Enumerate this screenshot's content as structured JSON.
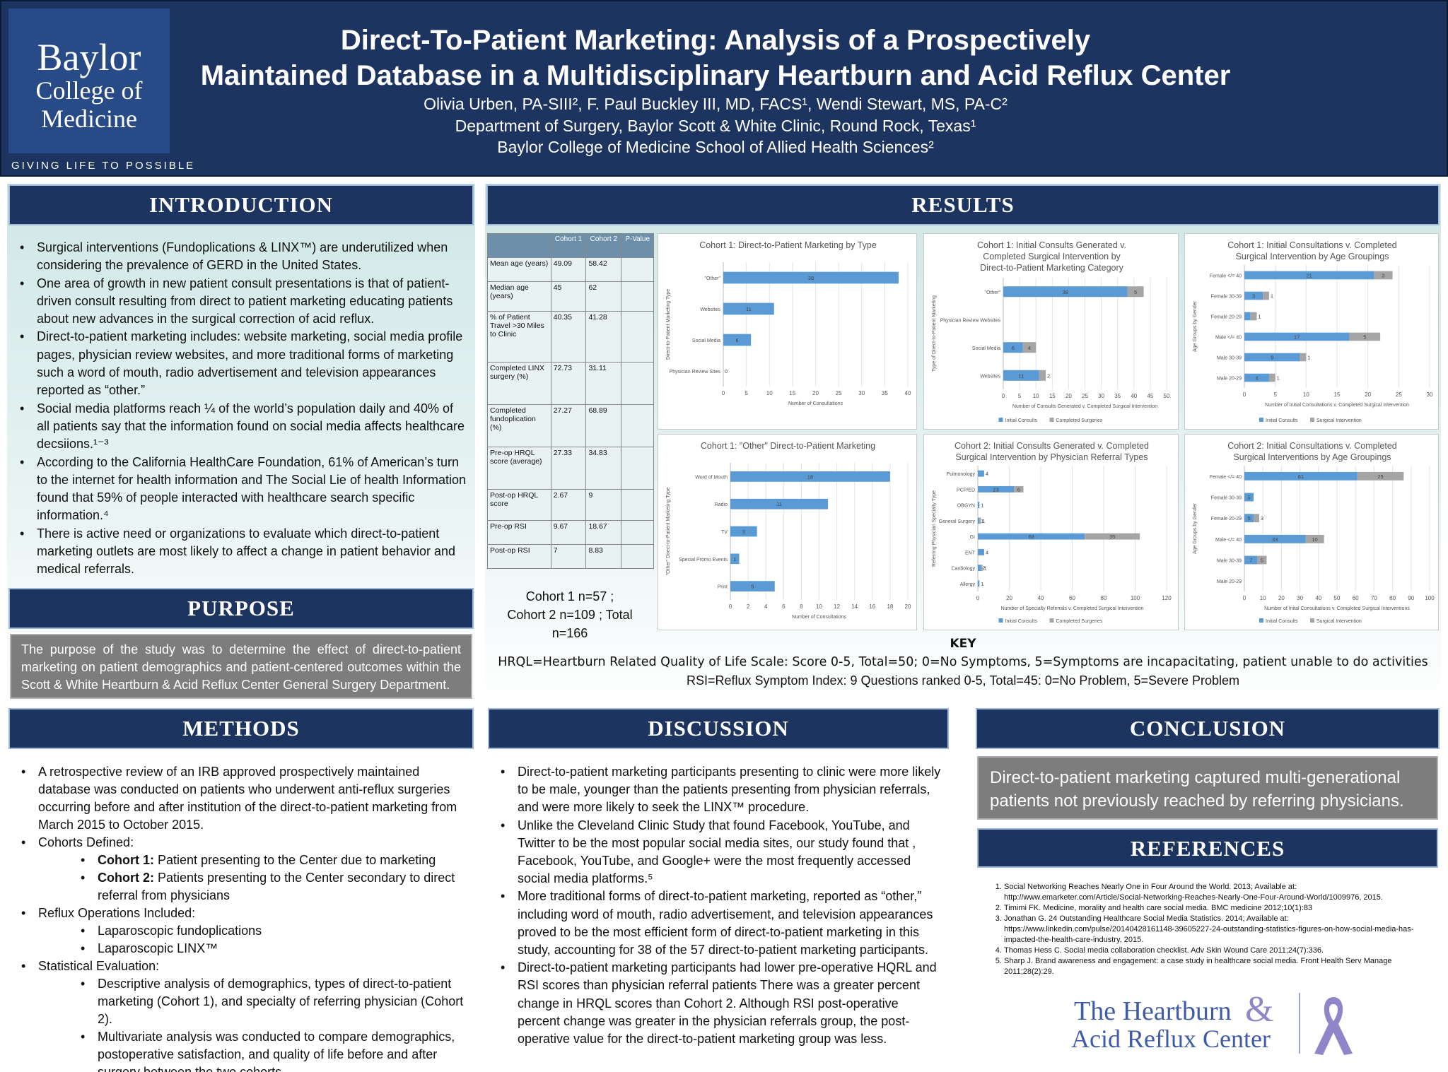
{
  "header": {
    "logo": {
      "line1": "Baylor",
      "line2": "College of",
      "line3": "Medicine"
    },
    "tagline": "GIVING LIFE TO POSSIBLE",
    "title_line1": "Direct-To-Patient Marketing: Analysis of a Prospectively",
    "title_line2": "Maintained Database in a Multidisciplinary Heartburn and Acid Reflux Center",
    "authors": "Olivia Urben, PA-SIII², F. Paul Buckley III, MD, FACS¹, Wendi Stewart, MS, PA-C²",
    "affiliation1": "Department of Surgery, Baylor Scott & White Clinic, Round Rock, Texas¹",
    "affiliation2": "Baylor College of Medicine School of Allied Health Sciences²"
  },
  "introduction": {
    "heading": "INTRODUCTION",
    "bullets": [
      "Surgical interventions (Fundoplications & LINX™) are underutilized when considering the prevalence of GERD in the United States.",
      "One area of growth in new patient consult presentations is that of patient-driven consult resulting from direct to patient marketing educating patients about new advances in the surgical correction of acid reflux.",
      "Direct-to-patient marketing includes: website marketing, social media profile pages, physician review websites, and more traditional forms of marketing such a word of mouth, radio advertisement and television appearances reported as “other.”",
      "Social media platforms reach ¼ of the world’s population daily and 40% of all patients say that the information found on social media affects healthcare decsiions.¹⁻³",
      "According to the California HealthCare Foundation, 61% of American’s turn to the internet for health information and The Social Lie of health Information found that 59% of people interacted with healthcare search specific information.⁴",
      "There is active need or organizations to evaluate which direct-to-patient marketing outlets are most likely to affect a change in patient behavior and medical referrals."
    ]
  },
  "purpose": {
    "heading": "PURPOSE",
    "text": "The purpose of the study was to determine the effect of direct-to-patient marketing on patient demographics and patient-centered outcomes within the Scott & White Heartburn & Acid Reflux Center General Surgery Department."
  },
  "methods": {
    "heading": "METHODS",
    "b1": "A retrospective review of an IRB approved prospectively maintained database was conducted on patients who underwent anti-reflux surgeries occurring before and after institution of the direct-to-patient marketing from March 2015 to October 2015.",
    "b2": "Cohorts Defined:",
    "c1_label": "Cohort 1:",
    "c1_text": " Patient presenting to the Center due to marketing",
    "c2_label": "Cohort 2:",
    "c2_text": " Patients presenting to the Center secondary to direct referral from physicians",
    "b3": "Reflux Operations Included:",
    "op1": "Laparoscopic fundoplications",
    "op2": "Laparoscopic LINX™",
    "b4": "Statistical Evaluation:",
    "s1": "Descriptive analysis of demographics, types of direct-to-patient marketing (Cohort 1), and specialty of referring physician (Cohort 2).",
    "s2": "Multivariate analysis was conducted to compare demographics, postoperative satisfaction, and quality of life before and after surgery between the two cohorts."
  },
  "results": {
    "heading": "RESULTS",
    "table": {
      "headers": [
        "",
        "Cohort 1",
        "Cohort 2",
        "P-Value"
      ],
      "rows": [
        [
          "Mean age (years)",
          "49.09",
          "58.42",
          ""
        ],
        [
          "Median age (years)",
          "45",
          "62",
          ""
        ],
        [
          "% of Patient Travel >30 Miles to Clinic",
          "40.35",
          "41.28",
          ""
        ],
        [
          "Completed LINX surgery (%)",
          "72.73",
          "31.11",
          ""
        ],
        [
          "Completed fundoplication (%)",
          "27.27",
          "68.89",
          ""
        ],
        [
          "Pre-op HRQL score (average)",
          "27.33",
          "34.83",
          ""
        ],
        [
          "Post-op HRQL score",
          "2.67",
          "9",
          ""
        ],
        [
          "Pre-op RSI",
          "9.67",
          "18.67",
          ""
        ],
        [
          "Post-op RSI",
          "7",
          "8.83",
          ""
        ]
      ]
    },
    "cohort_line1": "Cohort 1 n=57 ;",
    "cohort_line2": "Cohort 2 n=109 ; Total n=166"
  },
  "key": {
    "heading": "KEY",
    "hrql": "HRQL=Heartburn Related Quality of Life Scale: Score 0-5, Total=50; 0=No Symptoms, 5=Symptoms are incapacitating, patient unable to do activities",
    "rsi": "RSI=Reflux Symptom Index: 9 Questions ranked 0-5, Total=45: 0=No Problem, 5=Severe Problem"
  },
  "discussion": {
    "heading": "DISCUSSION",
    "bullets": [
      "Direct-to-patient marketing participants presenting to clinic were more likely to be male, younger than the patients presenting from physician referrals, and were more likely to seek the LINX™ procedure.",
      "Unlike the Cleveland Clinic Study that found Facebook, YouTube, and Twitter to be the most popular social media sites, our study found that , Facebook, YouTube, and Google+ were the most frequently accessed social media platforms.⁵",
      "More traditional forms of direct-to-patient marketing, reported as “other,” including word of mouth, radio advertisement, and television appearances proved to be the most efficient form of direct-to-patient marketing in this study, accounting for 38 of the 57 direct-to-patient marketing participants.",
      "Direct-to-patient marketing participants had lower pre-operative HQRL and RSI scores than physician referral patients There was a greater percent change in HRQL scores than Cohort 2. Although RSI post-operative percent change was greater in the physician referrals group, the post-operative value for the direct-to-patient marketing group was less."
    ]
  },
  "conclusion": {
    "heading": "CONCLUSION",
    "text": "Direct-to-patient marketing captured multi-generational patients not previously reached by referring physicians."
  },
  "references": {
    "heading": "REFERENCES",
    "items": [
      "Social Networking Reaches Nearly One in Four Around the World. 2013; Available at: http://www.emarketer.com/Article/Social-Networking-Reaches-Nearly-One-Four-Around-World/1009976, 2015.",
      "Timimi FK. Medicine, morality and health care social media. BMC medicine 2012;10(1):83",
      "Jonathan G. 24 Outstanding Healthcare Social Media Statistics. 2014; Available at: https://www.linkedin.com/pulse/20140428161148-39605227-24-outstanding-statistics-figures-on-how-social-media-has-impacted-the-health-care-industry, 2015.",
      "Thomas Hess C. Social media collaboration checklist. Adv Skin Wound Care 2011;24(7):336.",
      "Sharp J. Brand awareness and engagement: a case study in healthcare social media. Front Health Serv Manage 2011;28(2):29."
    ]
  },
  "footer_logo": {
    "line1": "The Heartburn",
    "amp": "&",
    "line2": "Acid Reflux Center"
  },
  "colors": {
    "navy": "#1d3461",
    "bar_blue": "#5b9bd5",
    "bar_gray": "#a5a5a5",
    "panel_gray": "#7d7d7d"
  },
  "chart_data": [
    {
      "type": "bar",
      "title": "Cohort 1: Direct-to-Patient Marketing by Type",
      "categories": [
        "\"Other\"",
        "Websites",
        "Social Media",
        "Physician Review Sites"
      ],
      "series": [
        {
          "values": [
            38,
            11,
            6,
            0
          ]
        }
      ],
      "xlabel": "Number of Consultations",
      "ylabel": "Direct-to-Patient Marketing Type",
      "xlim": [
        0,
        40
      ],
      "ticks": [
        0,
        5,
        10,
        15,
        20,
        25,
        30,
        35,
        40
      ],
      "legend": []
    },
    {
      "type": "bar",
      "title": "Cohort 1: Initial Consults Generated v. Completed Surgical Intervention by Direct-to-Patient Marketing Category",
      "categories": [
        "\"Other\"",
        "Physician Review Websites",
        "Social Media",
        "Websites"
      ],
      "series": [
        {
          "name": "Initial Consults",
          "values": [
            38,
            0,
            6,
            11
          ]
        },
        {
          "name": "Completed Surgeries",
          "values": [
            5,
            0,
            4,
            2
          ]
        }
      ],
      "xlabel": "Number of Consults Generated v. Completed Surgical Intervention",
      "ylabel": "Type of Direct-to-Patient Marketing",
      "xlim": [
        0,
        50
      ],
      "ticks": [
        0,
        5,
        10,
        15,
        20,
        25,
        30,
        35,
        40,
        45,
        50
      ],
      "legend": [
        "Initial Consults",
        "Completed Surgeries"
      ]
    },
    {
      "type": "bar",
      "title": "Cohort 1: Initial Consultations v. Completed Surgical Intervention by Age Groupings",
      "categories": [
        "Female </= 40",
        "Female 30-39",
        "Female 20-29",
        "Male </= 40",
        "Male 30-39",
        "Male 20-29"
      ],
      "series": [
        {
          "name": "Initial Consultations",
          "values": [
            21,
            3,
            1,
            17,
            9,
            4
          ]
        },
        {
          "name": "Surgical Intervention",
          "values": [
            3,
            1,
            1,
            5,
            1,
            1
          ]
        }
      ],
      "xlabel": "Number of Initial Consultations v. Completed Surgical Intervention",
      "ylabel": "Age Groups by Gender",
      "xlim": [
        0,
        30
      ],
      "ticks": [
        0,
        5,
        10,
        15,
        20,
        25,
        30
      ],
      "legend": [
        "Initial Consults",
        "Surgical Intervention"
      ]
    },
    {
      "type": "bar",
      "title": "Cohort 1: \"Other\" Direct-to-Patient Marketing",
      "categories": [
        "Word of Mouth",
        "Radio",
        "TV",
        "Special Promo Events",
        "Print"
      ],
      "series": [
        {
          "values": [
            18,
            11,
            3,
            1,
            5
          ]
        }
      ],
      "xlabel": "Number of Consultations",
      "ylabel": "\"Other\" Direct-to-Patient Marketing Type",
      "xlim": [
        0,
        20
      ],
      "ticks": [
        0,
        2,
        4,
        6,
        8,
        10,
        12,
        14,
        16,
        18,
        20
      ],
      "legend": []
    },
    {
      "type": "bar",
      "title": "Cohort 2: Initial Consults Generated v. Completed Surgical Intervention by Physician Referral Types",
      "categories": [
        "Pulmonology",
        "PCP/ED",
        "OBGYN",
        "General Surgery",
        "GI",
        "ENT",
        "Cardiology",
        "Allergy"
      ],
      "series": [
        {
          "name": "Initial Consults",
          "values": [
            4,
            23,
            1,
            1,
            68,
            4,
            2,
            1
          ]
        },
        {
          "name": "Completed Surgeries",
          "values": [
            0,
            6,
            0,
            1,
            35,
            0,
            1,
            0
          ]
        }
      ],
      "xlabel": "Number of Specialty Referrals v. Completed Surgical Intervention",
      "ylabel": "Referring Physician Specialty Type",
      "xlim": [
        0,
        120
      ],
      "ticks": [
        0,
        20,
        40,
        60,
        80,
        100,
        120
      ],
      "legend": [
        "Initial Consults",
        "Completed Surgeries"
      ]
    },
    {
      "type": "bar",
      "title": "Cohort 2: Initial Consultations v. Completed Surgical Interventions by Age Groupings",
      "categories": [
        "Female </= 40",
        "Female 30-39",
        "Female 20-29",
        "Male </= 40",
        "Male 30-39",
        "Male 20-29"
      ],
      "series": [
        {
          "name": "Initial Consultations",
          "values": [
            61,
            5,
            5,
            33,
            7,
            0
          ]
        },
        {
          "name": "Surgical Intervention",
          "values": [
            25,
            0,
            3,
            10,
            5,
            0
          ]
        }
      ],
      "xlabel": "Number of Inital Consultations v. Completed Surgical Interventions",
      "ylabel": "Age Groups by Gender",
      "xlim": [
        0,
        100
      ],
      "ticks": [
        0,
        10,
        20,
        30,
        40,
        50,
        60,
        70,
        80,
        90,
        100
      ],
      "legend": [
        "Initial Consults",
        "Surgical Intervention"
      ]
    }
  ]
}
